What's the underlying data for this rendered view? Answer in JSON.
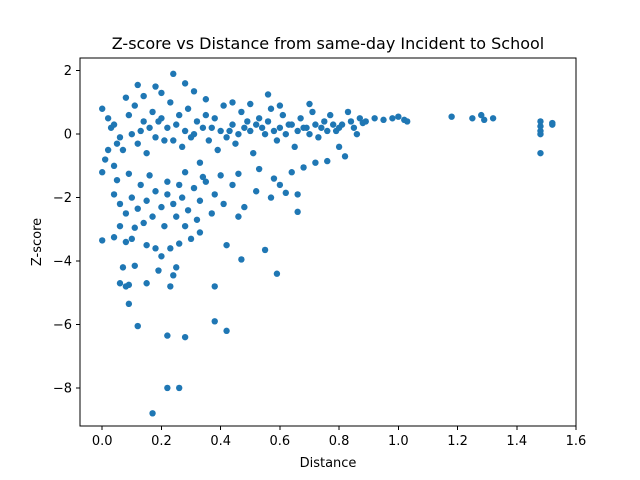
{
  "chart_data": {
    "type": "scatter",
    "title": "Z-score vs Distance from same-day Incident to School",
    "xlabel": "Distance",
    "ylabel": "Z-score",
    "xlim": [
      -0.075,
      1.6
    ],
    "ylim": [
      -9.2,
      2.4
    ],
    "xticks": [
      "0.0",
      "0.2",
      "0.4",
      "0.6",
      "0.8",
      "1.0",
      "1.2",
      "1.4",
      "1.6"
    ],
    "xtick_values": [
      0.0,
      0.2,
      0.4,
      0.6,
      0.8,
      1.0,
      1.2,
      1.4,
      1.6
    ],
    "yticks": [
      "2",
      "0",
      "−2",
      "−4",
      "−6",
      "−8"
    ],
    "ytick_values": [
      2,
      0,
      -2,
      -4,
      -6,
      -8
    ],
    "grid": false,
    "legend": "none",
    "color": "#1f77b4",
    "points": [
      [
        0.17,
        -8.8
      ],
      [
        0.22,
        -8.0
      ],
      [
        0.26,
        -8.0
      ],
      [
        0.28,
        -6.4
      ],
      [
        0.22,
        -6.35
      ],
      [
        0.12,
        -6.05
      ],
      [
        0.42,
        -6.2
      ],
      [
        0.38,
        -5.9
      ],
      [
        0.09,
        -5.35
      ],
      [
        0.08,
        -4.8
      ],
      [
        0.06,
        -4.7
      ],
      [
        0.09,
        -4.75
      ],
      [
        0.15,
        -4.7
      ],
      [
        0.23,
        -4.8
      ],
      [
        0.38,
        -4.8
      ],
      [
        0.19,
        -4.3
      ],
      [
        0.24,
        -4.45
      ],
      [
        0.25,
        -4.2
      ],
      [
        0.07,
        -4.2
      ],
      [
        0.11,
        -4.15
      ],
      [
        0.59,
        -4.4
      ],
      [
        0.47,
        -3.95
      ],
      [
        0.0,
        -3.35
      ],
      [
        0.04,
        -3.25
      ],
      [
        0.08,
        -3.4
      ],
      [
        0.1,
        -3.3
      ],
      [
        0.15,
        -3.5
      ],
      [
        0.18,
        -3.6
      ],
      [
        0.2,
        -3.85
      ],
      [
        0.23,
        -3.6
      ],
      [
        0.26,
        -3.45
      ],
      [
        0.3,
        -3.3
      ],
      [
        0.33,
        -3.1
      ],
      [
        0.42,
        -3.5
      ],
      [
        0.55,
        -3.65
      ],
      [
        0.06,
        -2.9
      ],
      [
        0.11,
        -2.95
      ],
      [
        0.14,
        -2.8
      ],
      [
        0.17,
        -2.6
      ],
      [
        0.21,
        -2.9
      ],
      [
        0.25,
        -2.6
      ],
      [
        0.28,
        -2.9
      ],
      [
        0.32,
        -2.7
      ],
      [
        0.37,
        -2.5
      ],
      [
        0.46,
        -2.6
      ],
      [
        0.66,
        -2.45
      ],
      [
        0.04,
        -1.9
      ],
      [
        0.06,
        -2.2
      ],
      [
        0.08,
        -2.5
      ],
      [
        0.1,
        -2.0
      ],
      [
        0.12,
        -2.35
      ],
      [
        0.13,
        -1.6
      ],
      [
        0.15,
        -2.1
      ],
      [
        0.18,
        -1.8
      ],
      [
        0.2,
        -2.3
      ],
      [
        0.22,
        -1.9
      ],
      [
        0.24,
        -2.2
      ],
      [
        0.26,
        -1.6
      ],
      [
        0.27,
        -2.0
      ],
      [
        0.29,
        -2.4
      ],
      [
        0.31,
        -1.7
      ],
      [
        0.33,
        -2.1
      ],
      [
        0.35,
        -1.5
      ],
      [
        0.38,
        -1.9
      ],
      [
        0.41,
        -2.2
      ],
      [
        0.44,
        -1.6
      ],
      [
        0.48,
        -2.3
      ],
      [
        0.52,
        -1.8
      ],
      [
        0.57,
        -2.0
      ],
      [
        0.62,
        -1.85
      ],
      [
        0.66,
        -1.9
      ],
      [
        0.0,
        0.8
      ],
      [
        0.02,
        0.5
      ],
      [
        0.03,
        0.2
      ],
      [
        0.05,
        -0.3
      ],
      [
        0.01,
        -0.8
      ],
      [
        0.04,
        -1.0
      ],
      [
        0.07,
        -0.5
      ],
      [
        0.09,
        0.6
      ],
      [
        0.11,
        0.9
      ],
      [
        0.13,
        0.1
      ],
      [
        0.15,
        -0.6
      ],
      [
        0.17,
        0.7
      ],
      [
        0.19,
        0.4
      ],
      [
        0.21,
        -0.2
      ],
      [
        0.23,
        1.0
      ],
      [
        0.25,
        0.3
      ],
      [
        0.27,
        -0.4
      ],
      [
        0.29,
        0.8
      ],
      [
        0.31,
        0.0
      ],
      [
        0.33,
        -0.9
      ],
      [
        0.35,
        0.6
      ],
      [
        0.37,
        0.2
      ],
      [
        0.39,
        -0.5
      ],
      [
        0.41,
        0.9
      ],
      [
        0.43,
        0.1
      ],
      [
        0.45,
        -0.3
      ],
      [
        0.47,
        0.7
      ],
      [
        0.49,
        0.4
      ],
      [
        0.51,
        -0.6
      ],
      [
        0.53,
        0.5
      ],
      [
        0.55,
        0.0
      ],
      [
        0.57,
        0.8
      ],
      [
        0.59,
        -0.2
      ],
      [
        0.61,
        0.6
      ],
      [
        0.63,
        0.3
      ],
      [
        0.65,
        -0.4
      ],
      [
        0.67,
        0.5
      ],
      [
        0.69,
        0.2
      ],
      [
        0.71,
        0.7
      ],
      [
        0.73,
        -0.1
      ],
      [
        0.75,
        0.4
      ],
      [
        0.77,
        0.6
      ],
      [
        0.79,
        0.1
      ],
      [
        0.81,
        0.3
      ],
      [
        0.83,
        0.7
      ],
      [
        0.85,
        0.2
      ],
      [
        0.87,
        0.5
      ],
      [
        0.89,
        0.4
      ],
      [
        0.92,
        0.5
      ],
      [
        0.95,
        0.45
      ],
      [
        0.12,
        1.55
      ],
      [
        0.18,
        1.5
      ],
      [
        0.24,
        1.9
      ],
      [
        0.28,
        1.6
      ],
      [
        0.14,
        1.2
      ],
      [
        0.2,
        1.3
      ],
      [
        0.31,
        1.35
      ],
      [
        0.56,
        1.25
      ],
      [
        0.08,
        1.15
      ],
      [
        0.35,
        1.1
      ],
      [
        0.44,
        1.0
      ],
      [
        0.5,
        0.95
      ],
      [
        0.6,
        0.9
      ],
      [
        0.7,
        0.95
      ],
      [
        0.0,
        -1.2
      ],
      [
        0.05,
        -1.45
      ],
      [
        0.09,
        -1.25
      ],
      [
        0.16,
        -1.3
      ],
      [
        0.22,
        -1.5
      ],
      [
        0.28,
        -1.2
      ],
      [
        0.34,
        -1.35
      ],
      [
        0.4,
        -1.3
      ],
      [
        0.46,
        -1.25
      ],
      [
        0.53,
        -1.1
      ],
      [
        0.58,
        -1.4
      ],
      [
        0.64,
        -1.2
      ],
      [
        0.6,
        -1.6
      ],
      [
        0.68,
        -1.05
      ],
      [
        0.72,
        -0.9
      ],
      [
        0.76,
        -0.85
      ],
      [
        0.82,
        -0.7
      ],
      [
        0.8,
        -0.4
      ],
      [
        0.86,
        0.0
      ],
      [
        0.02,
        -0.5
      ],
      [
        0.04,
        0.3
      ],
      [
        0.06,
        -0.1
      ],
      [
        0.1,
        0.0
      ],
      [
        0.12,
        -0.3
      ],
      [
        0.14,
        0.4
      ],
      [
        0.16,
        0.2
      ],
      [
        0.18,
        -0.1
      ],
      [
        0.2,
        0.5
      ],
      [
        0.22,
        0.2
      ],
      [
        0.24,
        -0.2
      ],
      [
        0.26,
        0.6
      ],
      [
        0.28,
        0.1
      ],
      [
        0.3,
        -0.1
      ],
      [
        0.32,
        0.4
      ],
      [
        0.34,
        0.2
      ],
      [
        0.36,
        -0.2
      ],
      [
        0.38,
        0.5
      ],
      [
        0.4,
        0.1
      ],
      [
        0.42,
        -0.1
      ],
      [
        0.44,
        0.3
      ],
      [
        0.46,
        0.0
      ],
      [
        0.48,
        0.2
      ],
      [
        0.5,
        0.1
      ],
      [
        0.52,
        0.3
      ],
      [
        0.54,
        0.2
      ],
      [
        0.56,
        0.4
      ],
      [
        0.58,
        0.1
      ],
      [
        0.6,
        0.2
      ],
      [
        0.62,
        0.0
      ],
      [
        0.64,
        0.3
      ],
      [
        0.66,
        0.1
      ],
      [
        0.68,
        0.2
      ],
      [
        0.7,
        0.0
      ],
      [
        0.72,
        0.3
      ],
      [
        0.74,
        0.2
      ],
      [
        0.76,
        0.1
      ],
      [
        0.78,
        0.3
      ],
      [
        0.8,
        0.2
      ],
      [
        0.84,
        0.4
      ],
      [
        0.88,
        0.35
      ],
      [
        0.98,
        0.5
      ],
      [
        1.0,
        0.55
      ],
      [
        1.02,
        0.45
      ],
      [
        1.03,
        0.4
      ],
      [
        1.18,
        0.55
      ],
      [
        1.25,
        0.5
      ],
      [
        1.28,
        0.6
      ],
      [
        1.29,
        0.45
      ],
      [
        1.32,
        0.5
      ],
      [
        1.48,
        0.4
      ],
      [
        1.48,
        0.25
      ],
      [
        1.48,
        0.1
      ],
      [
        1.48,
        0.0
      ],
      [
        1.48,
        -0.6
      ],
      [
        1.52,
        0.35
      ],
      [
        1.52,
        0.3
      ]
    ]
  }
}
